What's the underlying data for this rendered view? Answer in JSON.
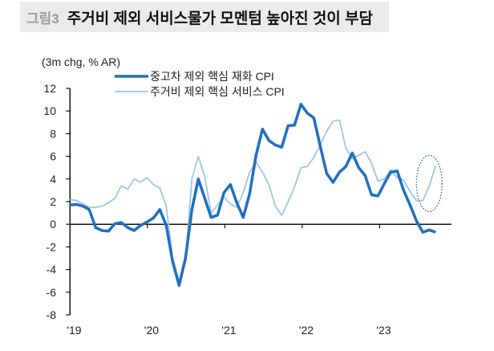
{
  "header": {
    "figure_label": "그림3",
    "title": "주거비 제외 서비스물가 모멘텀 높아진 것이 부담"
  },
  "chart_data": {
    "type": "line",
    "title": "주거비 제외 서비스물가 모멘텀 높아진 것이 부담",
    "unit_label": "(3m chg, % AR)",
    "xlabel": "",
    "ylabel": "",
    "x_start": "2019-01",
    "frequency": "monthly",
    "x_tick_labels": [
      "'19",
      "'20",
      "'21",
      "'22",
      "'23"
    ],
    "y_ticks": [
      12,
      10,
      8,
      6,
      4,
      2,
      0,
      -2,
      -4,
      -6,
      -8
    ],
    "ylim": [
      -8,
      12
    ],
    "grid": false,
    "legend_position": "top-left",
    "annotation": "dotted ellipse around latest services CPI points",
    "series": [
      {
        "name": "중고차 제외 핵심 재화 CPI",
        "color": "#1f6fbf",
        "values": [
          1.7,
          1.75,
          1.6,
          1.3,
          -0.3,
          -0.55,
          -0.6,
          0.05,
          0.15,
          -0.3,
          -0.55,
          -0.1,
          0.2,
          0.55,
          1.3,
          -0.1,
          -3.3,
          -5.4,
          -3.0,
          1.3,
          4.0,
          2.3,
          0.6,
          0.8,
          2.8,
          3.5,
          1.9,
          0.6,
          2.7,
          6.1,
          8.4,
          7.4,
          7.0,
          6.8,
          8.7,
          8.75,
          10.6,
          9.8,
          9.4,
          6.9,
          4.5,
          3.7,
          4.6,
          5.1,
          6.3,
          5.0,
          4.3,
          2.6,
          2.5,
          3.6,
          4.6,
          4.7,
          3.0,
          1.7,
          0.3,
          -0.7,
          -0.5,
          -0.7
        ]
      },
      {
        "name": "주거비 제외 핵심 서비스 CPI",
        "color": "#9cc5ea",
        "values": [
          2.2,
          2.1,
          1.8,
          1.5,
          1.5,
          1.6,
          1.9,
          2.3,
          3.4,
          3.1,
          4.0,
          3.7,
          4.1,
          3.5,
          3.2,
          1.6,
          -3.0,
          -5.0,
          -3.3,
          4.0,
          6.0,
          4.2,
          1.0,
          1.7,
          2.4,
          1.8,
          1.5,
          2.8,
          4.6,
          5.5,
          4.6,
          3.5,
          1.6,
          0.8,
          2.0,
          3.3,
          5.0,
          5.1,
          5.9,
          7.0,
          8.2,
          9.1,
          9.2,
          6.7,
          5.8,
          6.1,
          6.4,
          5.4,
          3.8,
          4.0,
          4.8,
          4.1,
          3.9,
          2.9,
          2.1,
          2.1,
          3.4,
          5.2
        ]
      }
    ]
  }
}
